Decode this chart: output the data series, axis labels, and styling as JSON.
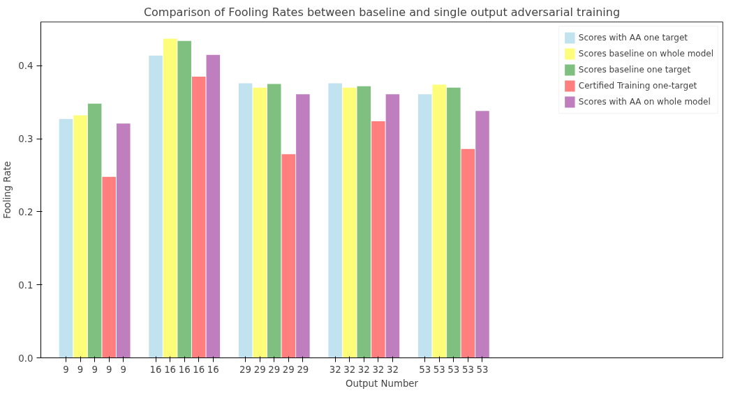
{
  "chart_data": {
    "type": "bar",
    "title": "Comparison of Fooling Rates between baseline and single output adversarial training",
    "xlabel": "Output Number",
    "ylabel": "Fooling Rate",
    "categories": [
      "9",
      "16",
      "29",
      "32",
      "53"
    ],
    "series": [
      {
        "name": "Scores with AA one target",
        "color": "#c1e3f0",
        "values": [
          0.327,
          0.414,
          0.376,
          0.376,
          0.361
        ]
      },
      {
        "name": "Scores baseline on whole model",
        "color": "#fefd7a",
        "values": [
          0.332,
          0.437,
          0.37,
          0.37,
          0.374
        ]
      },
      {
        "name": "Scores baseline one target",
        "color": "#7fbf7f",
        "values": [
          0.348,
          0.434,
          0.375,
          0.372,
          0.37
        ]
      },
      {
        "name": "Certified Training one-target",
        "color": "#ff7f7f",
        "values": [
          0.248,
          0.385,
          0.279,
          0.324,
          0.286
        ]
      },
      {
        "name": "Scores with AA on whole model",
        "color": "#bf7fbf",
        "values": [
          0.321,
          0.415,
          0.361,
          0.361,
          0.338
        ]
      }
    ],
    "ylim": [
      0,
      0.46
    ],
    "yticks": [
      {
        "value": 0,
        "label": "0.0"
      },
      0.1,
      0.2,
      0.3,
      0.4
    ],
    "grid": false,
    "legend": "top right"
  }
}
